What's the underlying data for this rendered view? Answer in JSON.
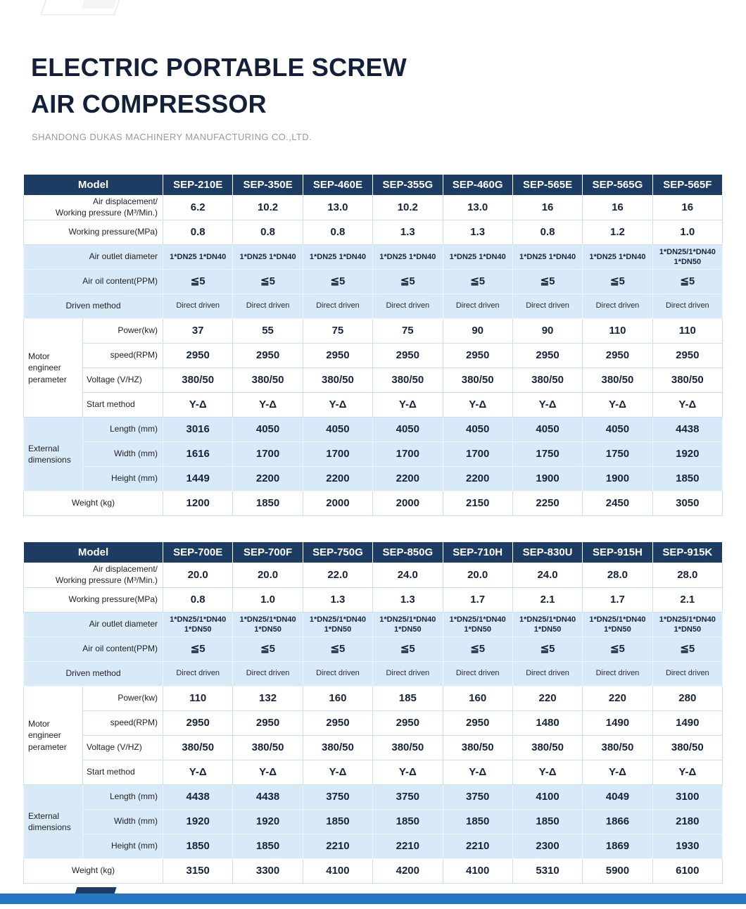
{
  "page": {
    "title_line1": "ELECTRIC PORTABLE SCREW",
    "title_line2": "AIR COMPRESSOR",
    "subtitle": "SHANDONG DUKAS MACHINERY MANUFACTURING CO.,LTD."
  },
  "header_label": "Model",
  "groups": {
    "motor": "Motor engineer perameter",
    "external": "External dimensions"
  },
  "row_defs": [
    {
      "id": "air_displacement",
      "label": "Air displacement/\nWorking pressure (M³/Min.)"
    },
    {
      "id": "working_pressure",
      "label": "Working pressure(MPa)"
    },
    {
      "id": "air_outlet",
      "label": "Air outlet diameter"
    },
    {
      "id": "air_oil",
      "label": "Air oil content(PPM)"
    },
    {
      "id": "driven_method",
      "label": "Driven method"
    },
    {
      "id": "power",
      "label": "Power(kw)",
      "group": "motor"
    },
    {
      "id": "speed",
      "label": "speed(RPM)",
      "group": "motor"
    },
    {
      "id": "voltage",
      "label": "Voltage (V/HZ)",
      "group": "motor"
    },
    {
      "id": "start_method",
      "label": "Start method",
      "group": "motor"
    },
    {
      "id": "length",
      "label": "Length (mm)",
      "group": "external"
    },
    {
      "id": "width",
      "label": "Width (mm)",
      "group": "external"
    },
    {
      "id": "height",
      "label": "Height (mm)",
      "group": "external"
    },
    {
      "id": "weight",
      "label": "Weight (kg)"
    }
  ],
  "tables": [
    {
      "models": [
        "SEP-210E",
        "SEP-350E",
        "SEP-460E",
        "SEP-355G",
        "SEP-460G",
        "SEP-565E",
        "SEP-565G",
        "SEP-565F"
      ],
      "values": {
        "air_displacement": [
          "6.2",
          "10.2",
          "13.0",
          "10.2",
          "13.0",
          "16",
          "16",
          "16"
        ],
        "working_pressure": [
          "0.8",
          "0.8",
          "0.8",
          "1.3",
          "1.3",
          "0.8",
          "1.2",
          "1.0"
        ],
        "air_outlet": [
          "1*DN25 1*DN40",
          "1*DN25 1*DN40",
          "1*DN25 1*DN40",
          "1*DN25 1*DN40",
          "1*DN25 1*DN40",
          "1*DN25 1*DN40",
          "1*DN25 1*DN40",
          "1*DN25/1*DN40\n1*DN50"
        ],
        "air_oil": [
          "≦5",
          "≦5",
          "≦5",
          "≦5",
          "≦5",
          "≦5",
          "≦5",
          "≦5"
        ],
        "driven_method": [
          "Direct driven",
          "Direct driven",
          "Direct driven",
          "Direct driven",
          "Direct driven",
          "Direct driven",
          "Direct driven",
          "Direct driven"
        ],
        "power": [
          "37",
          "55",
          "75",
          "75",
          "90",
          "90",
          "110",
          "110"
        ],
        "speed": [
          "2950",
          "2950",
          "2950",
          "2950",
          "2950",
          "2950",
          "2950",
          "2950"
        ],
        "voltage": [
          "380/50",
          "380/50",
          "380/50",
          "380/50",
          "380/50",
          "380/50",
          "380/50",
          "380/50"
        ],
        "start_method": [
          "Y-Δ",
          "Y-Δ",
          "Y-Δ",
          "Y-Δ",
          "Y-Δ",
          "Y-Δ",
          "Y-Δ",
          "Y-Δ"
        ],
        "length": [
          "3016",
          "4050",
          "4050",
          "4050",
          "4050",
          "4050",
          "4050",
          "4438"
        ],
        "width": [
          "1616",
          "1700",
          "1700",
          "1700",
          "1700",
          "1750",
          "1750",
          "1920"
        ],
        "height": [
          "1449",
          "2200",
          "2200",
          "2200",
          "2200",
          "1900",
          "1900",
          "1850"
        ],
        "weight": [
          "1200",
          "1850",
          "2000",
          "2000",
          "2150",
          "2250",
          "2450",
          "3050"
        ]
      }
    },
    {
      "models": [
        "SEP-700E",
        "SEP-700F",
        "SEP-750G",
        "SEP-850G",
        "SEP-710H",
        "SEP-830U",
        "SEP-915H",
        "SEP-915K"
      ],
      "values": {
        "air_displacement": [
          "20.0",
          "20.0",
          "22.0",
          "24.0",
          "20.0",
          "24.0",
          "28.0",
          "28.0"
        ],
        "working_pressure": [
          "0.8",
          "1.0",
          "1.3",
          "1.3",
          "1.7",
          "2.1",
          "1.7",
          "2.1"
        ],
        "air_outlet": [
          "1*DN25/1*DN40\n1*DN50",
          "1*DN25/1*DN40\n1*DN50",
          "1*DN25/1*DN40\n1*DN50",
          "1*DN25/1*DN40\n1*DN50",
          "1*DN25/1*DN40\n1*DN50",
          "1*DN25/1*DN40\n1*DN50",
          "1*DN25/1*DN40\n1*DN50",
          "1*DN25/1*DN40\n1*DN50"
        ],
        "air_oil": [
          "≦5",
          "≦5",
          "≦5",
          "≦5",
          "≦5",
          "≦5",
          "≦5",
          "≦5"
        ],
        "driven_method": [
          "Direct driven",
          "Direct driven",
          "Direct driven",
          "Direct driven",
          "Direct driven",
          "Direct driven",
          "Direct driven",
          "Direct driven"
        ],
        "power": [
          "110",
          "132",
          "160",
          "185",
          "160",
          "220",
          "220",
          "280"
        ],
        "speed": [
          "2950",
          "2950",
          "2950",
          "2950",
          "2950",
          "1480",
          "1490",
          "1490"
        ],
        "voltage": [
          "380/50",
          "380/50",
          "380/50",
          "380/50",
          "380/50",
          "380/50",
          "380/50",
          "380/50"
        ],
        "start_method": [
          "Y-Δ",
          "Y-Δ",
          "Y-Δ",
          "Y-Δ",
          "Y-Δ",
          "Y-Δ",
          "Y-Δ",
          "Y-Δ"
        ],
        "length": [
          "4438",
          "4438",
          "3750",
          "3750",
          "3750",
          "4100",
          "4049",
          "3100"
        ],
        "width": [
          "1920",
          "1920",
          "1850",
          "1850",
          "1850",
          "1850",
          "1866",
          "2180"
        ],
        "height": [
          "1850",
          "1850",
          "2210",
          "2210",
          "2210",
          "2300",
          "1869",
          "1930"
        ],
        "weight": [
          "3150",
          "3300",
          "4100",
          "4200",
          "4100",
          "5310",
          "5900",
          "6100"
        ]
      }
    }
  ],
  "colors": {
    "header_navy": "#1c3c63",
    "row_blue": "#d8eaf7",
    "footer_blue": "#2577c3",
    "title_navy": "#13203a"
  }
}
